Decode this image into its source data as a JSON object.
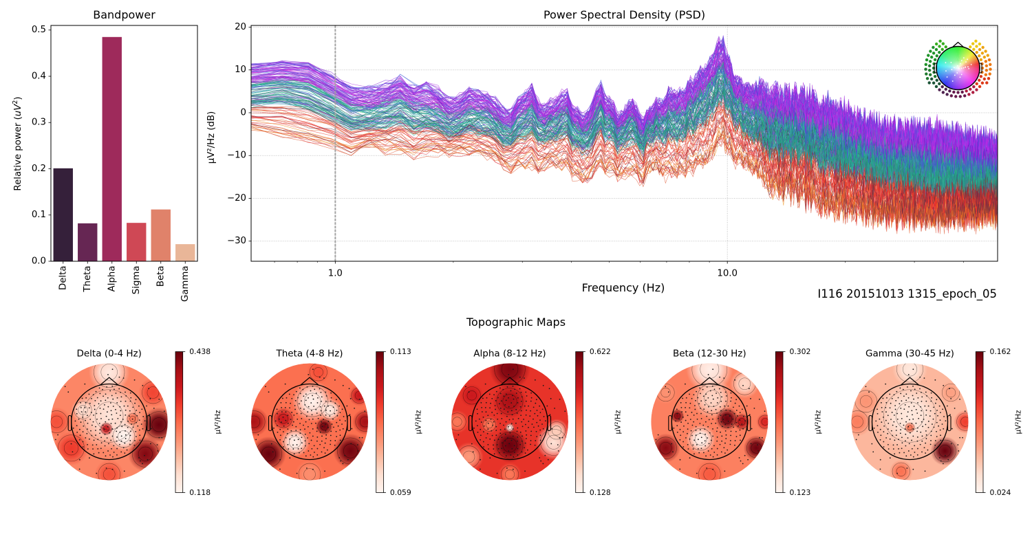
{
  "figure": {
    "recording_label": "I116 20151013 1315_epoch_05"
  },
  "chart_data": [
    {
      "type": "bar",
      "title": "Bandpower",
      "xlabel": "",
      "ylabel": {
        "prefix": "Relative power (",
        "math": "uV",
        "sup": "2",
        "suffix": ")"
      },
      "categories": [
        "Delta",
        "Theta",
        "Alpha",
        "Sigma",
        "Beta",
        "Gamma"
      ],
      "values": [
        0.201,
        0.082,
        0.485,
        0.083,
        0.112,
        0.037
      ],
      "colors": [
        "#35203a",
        "#662653",
        "#9e2a5b",
        "#cf4855",
        "#e0826a",
        "#e9b698"
      ],
      "ylim": [
        0,
        0.51
      ],
      "yticks": [
        {
          "value": 0.0,
          "label": "0.0"
        },
        {
          "value": 0.1,
          "label": "0.1"
        },
        {
          "value": 0.2,
          "label": "0.2"
        },
        {
          "value": 0.3,
          "label": "0.3"
        },
        {
          "value": 0.4,
          "label": "0.4"
        },
        {
          "value": 0.5,
          "label": "0.5"
        }
      ],
      "grid": false
    },
    {
      "type": "line",
      "title": "Power Spectral Density (PSD)",
      "xlabel": "Frequency (Hz)",
      "ylabel": "µV²/Hz (dB)",
      "xscale": "log",
      "xlim": [
        0.61,
        48.9
      ],
      "ylim": [
        -34.7,
        20.4
      ],
      "xticks": [
        {
          "value": 1.0,
          "label": "1.0"
        },
        {
          "value": 10.0,
          "label": "10.0"
        }
      ],
      "xminor_ticks": [
        0.7,
        0.8,
        0.9,
        2,
        3,
        4,
        5,
        6,
        7,
        8,
        9,
        20,
        30,
        40
      ],
      "yticks": [
        {
          "value": 20,
          "label": "20"
        },
        {
          "value": 10,
          "label": "10"
        },
        {
          "value": 0,
          "label": "0"
        },
        {
          "value": -10,
          "label": "−10"
        },
        {
          "value": -20,
          "label": "−20"
        },
        {
          "value": -30,
          "label": "−30"
        }
      ],
      "grid": true,
      "grid_style": "dotted",
      "vertical_marker": {
        "x": 1.0,
        "style": "dashed",
        "color": "#a3a3a3"
      },
      "series_description": "one line per EEG channel, colored by scalp position (see head inset)",
      "envelope": {
        "freq": [
          0.61,
          0.7,
          0.85,
          1.0,
          1.1,
          1.24,
          1.46,
          1.7,
          2.0,
          2.2,
          2.4,
          2.78,
          3.16,
          3.44,
          3.79,
          4.28,
          4.75,
          5.3,
          5.68,
          6.06,
          6.43,
          7.08,
          7.62,
          8.4,
          8.98,
          9.7,
          10.3,
          11.0,
          12.3,
          13.1,
          14.7,
          18.0,
          20.5,
          24.0,
          28.0,
          35.0,
          48.9
        ],
        "upper": [
          12.0,
          12.0,
          12.3,
          8.5,
          7.0,
          5.0,
          9.6,
          6.0,
          3.0,
          5.8,
          4.5,
          0.2,
          6.6,
          0.6,
          5.5,
          -0.6,
          6.6,
          -1.0,
          3.5,
          -1.5,
          1.1,
          5.0,
          5.5,
          9.0,
          12.0,
          17.8,
          10.3,
          6.6,
          7.0,
          5.0,
          4.3,
          2.7,
          0.2,
          -2.6,
          -3.7,
          -3.7,
          -6.9
        ],
        "mean": [
          4.0,
          4.5,
          3.5,
          0.0,
          -1.5,
          -2.5,
          1.0,
          -2.5,
          -4.0,
          -2.0,
          -3.0,
          -6.0,
          -1.5,
          -5.5,
          -2.0,
          -6.5,
          -1.5,
          -6.0,
          -3.0,
          -6.5,
          -4.0,
          -3.0,
          -2.5,
          0.0,
          2.5,
          6.6,
          2.0,
          -1.5,
          -4.0,
          -5.3,
          -6.5,
          -7.9,
          -10.0,
          -11.5,
          -13.0,
          -14.5,
          -14.3
        ],
        "lower": [
          -4.5,
          -6.5,
          -8.0,
          -9.0,
          -10.0,
          -9.0,
          -9.0,
          -11.0,
          -10.0,
          -10.0,
          -11.0,
          -14.0,
          -13.0,
          -14.0,
          -13.0,
          -17.0,
          -14.0,
          -16.0,
          -15.0,
          -17.0,
          -14.0,
          -16.0,
          -15.0,
          -14.0,
          -13.0,
          -8.0,
          -12.0,
          -13.0,
          -16.0,
          -20.0,
          -20.0,
          -24.0,
          -24.0,
          -25.0,
          -26.0,
          -26.0,
          -25.0
        ]
      },
      "alpha_peak": {
        "freq": 9.7,
        "db": 17.8
      },
      "legend": {
        "type": "channel-location head inset",
        "placement": "top-right"
      }
    },
    {
      "type": "heatmap",
      "subtype": "topomap",
      "title": "Topographic Maps",
      "unit": "µV²/Hz",
      "colormap": [
        "#fff5f0",
        "#fee0d2",
        "#fcbba1",
        "#fc9272",
        "#fb6a4a",
        "#ef3b2c",
        "#cb181d",
        "#a50f15",
        "#67000d"
      ],
      "maps": [
        {
          "key": "delta",
          "title": "Delta (0-4 Hz)",
          "vmin": 0.118,
          "vmax": 0.438,
          "vmin_label": "0.118",
          "vmax_label": "0.438",
          "base": 0.25,
          "hotspots": [
            {
              "x": 0.0,
              "y": -0.1,
              "value": 0.15,
              "spread": 0.6
            },
            {
              "x": 0.0,
              "y": -0.85,
              "value": 0.14,
              "spread": 0.35
            },
            {
              "x": -0.45,
              "y": -0.2,
              "value": 0.16,
              "spread": 0.2
            },
            {
              "x": 0.25,
              "y": 0.25,
              "value": 0.12,
              "spread": 0.25
            },
            {
              "x": -0.05,
              "y": 0.12,
              "value": 0.36,
              "spread": 0.12
            },
            {
              "x": 0.85,
              "y": 0.05,
              "value": 0.44,
              "spread": 0.3
            },
            {
              "x": 0.62,
              "y": 0.55,
              "value": 0.42,
              "spread": 0.3
            },
            {
              "x": -0.65,
              "y": 0.45,
              "value": 0.32,
              "spread": 0.3
            },
            {
              "x": -0.9,
              "y": 0.0,
              "value": 0.3,
              "spread": 0.25
            },
            {
              "x": 0.75,
              "y": -0.5,
              "value": 0.31,
              "spread": 0.25
            },
            {
              "x": 0.0,
              "y": 0.9,
              "value": 0.3,
              "spread": 0.25
            },
            {
              "x": 0.4,
              "y": -0.05,
              "value": 0.27,
              "spread": 0.12
            }
          ]
        },
        {
          "key": "theta",
          "title": "Theta (4-8 Hz)",
          "vmin": 0.059,
          "vmax": 0.113,
          "vmin_label": "0.059",
          "vmax_label": "0.113",
          "base": 0.085,
          "hotspots": [
            {
              "x": 0.05,
              "y": -0.35,
              "value": 0.06,
              "spread": 0.35
            },
            {
              "x": 0.35,
              "y": -0.2,
              "value": 0.062,
              "spread": 0.2
            },
            {
              "x": -0.25,
              "y": 0.35,
              "value": 0.06,
              "spread": 0.25
            },
            {
              "x": -0.45,
              "y": -0.05,
              "value": 0.1,
              "spread": 0.2
            },
            {
              "x": 0.25,
              "y": 0.08,
              "value": 0.112,
              "spread": 0.15
            },
            {
              "x": -0.95,
              "y": 0.0,
              "value": 0.105,
              "spread": 0.25
            },
            {
              "x": 0.95,
              "y": 0.0,
              "value": 0.106,
              "spread": 0.22
            },
            {
              "x": 0.85,
              "y": -0.45,
              "value": 0.1,
              "spread": 0.18
            },
            {
              "x": -0.7,
              "y": 0.55,
              "value": 0.113,
              "spread": 0.3
            },
            {
              "x": 0.7,
              "y": 0.5,
              "value": 0.112,
              "spread": 0.3
            },
            {
              "x": 0.15,
              "y": -0.85,
              "value": 0.09,
              "spread": 0.2
            },
            {
              "x": 0.0,
              "y": 0.9,
              "value": 0.08,
              "spread": 0.25
            }
          ]
        },
        {
          "key": "alpha",
          "title": "Alpha (8-12 Hz)",
          "vmin": 0.128,
          "vmax": 0.622,
          "vmin_label": "0.128",
          "vmax_label": "0.622",
          "base": 0.45,
          "hotspots": [
            {
              "x": 0.0,
              "y": -0.9,
              "value": 0.6,
              "spread": 0.35
            },
            {
              "x": 0.0,
              "y": -0.35,
              "value": 0.55,
              "spread": 0.3
            },
            {
              "x": 0.0,
              "y": 0.4,
              "value": 0.62,
              "spread": 0.3
            },
            {
              "x": -0.35,
              "y": 0.05,
              "value": 0.35,
              "spread": 0.15
            },
            {
              "x": 0.75,
              "y": 0.35,
              "value": 0.18,
              "spread": 0.3
            },
            {
              "x": 0.8,
              "y": 0.15,
              "value": 0.22,
              "spread": 0.2
            },
            {
              "x": -0.7,
              "y": 0.6,
              "value": 0.3,
              "spread": 0.25
            },
            {
              "x": -0.9,
              "y": 0.0,
              "value": 0.35,
              "spread": 0.2
            },
            {
              "x": 0.0,
              "y": 0.9,
              "value": 0.35,
              "spread": 0.2
            },
            {
              "x": -0.65,
              "y": -0.45,
              "value": 0.5,
              "spread": 0.2
            },
            {
              "x": 0.0,
              "y": 0.1,
              "value": 0.15,
              "spread": 0.08
            }
          ]
        },
        {
          "key": "beta",
          "title": "Beta (12-30 Hz)",
          "vmin": 0.123,
          "vmax": 0.302,
          "vmin_label": "0.123",
          "vmax_label": "0.302",
          "base": 0.2,
          "hotspots": [
            {
              "x": 0.0,
              "y": -0.9,
              "value": 0.13,
              "spread": 0.4
            },
            {
              "x": 0.05,
              "y": -0.4,
              "value": 0.15,
              "spread": 0.35
            },
            {
              "x": 0.6,
              "y": -0.65,
              "value": 0.15,
              "spread": 0.25
            },
            {
              "x": -0.15,
              "y": 0.3,
              "value": 0.125,
              "spread": 0.25
            },
            {
              "x": -0.55,
              "y": -0.1,
              "value": 0.29,
              "spread": 0.12
            },
            {
              "x": 0.3,
              "y": -0.05,
              "value": 0.3,
              "spread": 0.2
            },
            {
              "x": 0.55,
              "y": 0.0,
              "value": 0.27,
              "spread": 0.15
            },
            {
              "x": -0.75,
              "y": 0.45,
              "value": 0.29,
              "spread": 0.25
            },
            {
              "x": 0.8,
              "y": 0.45,
              "value": 0.3,
              "spread": 0.22
            },
            {
              "x": 0.95,
              "y": 0.0,
              "value": 0.25,
              "spread": 0.15
            },
            {
              "x": 0.0,
              "y": 0.9,
              "value": 0.22,
              "spread": 0.25
            },
            {
              "x": -0.75,
              "y": -0.5,
              "value": 0.19,
              "spread": 0.2
            }
          ]
        },
        {
          "key": "gamma",
          "title": "Gamma (30-45 Hz)",
          "vmin": 0.024,
          "vmax": 0.162,
          "vmin_label": "0.024",
          "vmax_label": "0.162",
          "base": 0.06,
          "hotspots": [
            {
              "x": 0.0,
              "y": -0.1,
              "value": 0.035,
              "spread": 0.6
            },
            {
              "x": 0.0,
              "y": -0.9,
              "value": 0.035,
              "spread": 0.3
            },
            {
              "x": 0.6,
              "y": 0.5,
              "value": 0.162,
              "spread": 0.25
            },
            {
              "x": 0.95,
              "y": 0.0,
              "value": 0.11,
              "spread": 0.2
            },
            {
              "x": -0.9,
              "y": 0.0,
              "value": 0.085,
              "spread": 0.25
            },
            {
              "x": -0.15,
              "y": 0.85,
              "value": 0.09,
              "spread": 0.2
            },
            {
              "x": 0.0,
              "y": 0.1,
              "value": 0.09,
              "spread": 0.1
            },
            {
              "x": -0.75,
              "y": -0.35,
              "value": 0.075,
              "spread": 0.25
            },
            {
              "x": 0.7,
              "y": -0.5,
              "value": 0.07,
              "spread": 0.2
            }
          ]
        }
      ]
    }
  ]
}
